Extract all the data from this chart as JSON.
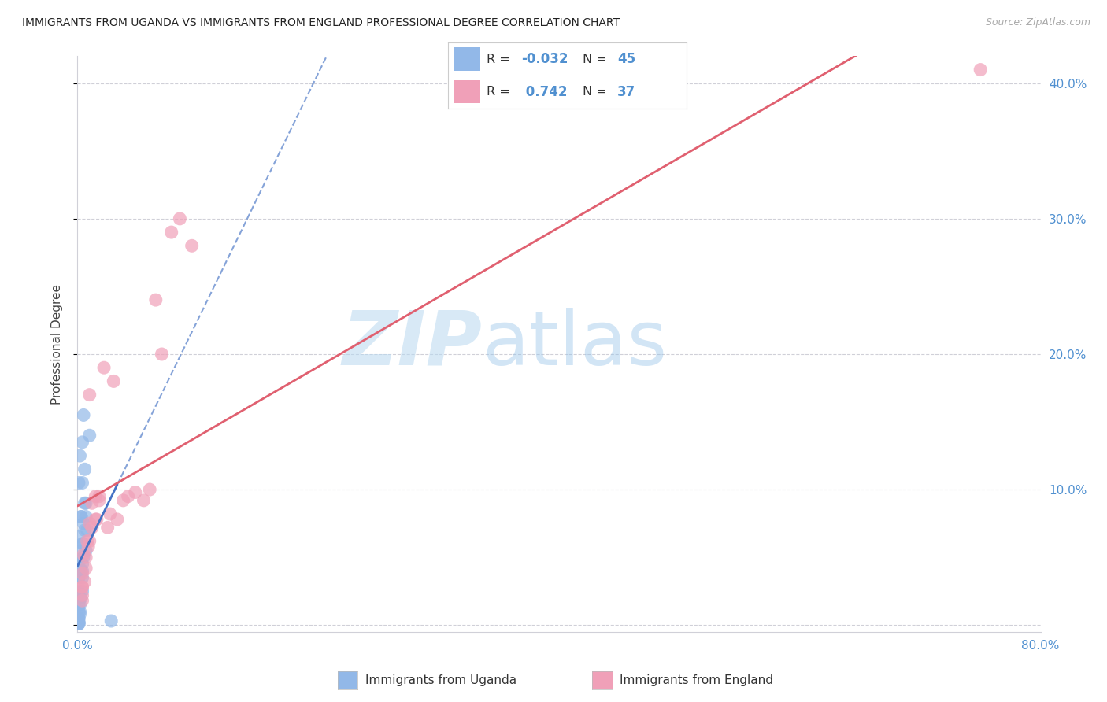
{
  "title": "IMMIGRANTS FROM UGANDA VS IMMIGRANTS FROM ENGLAND PROFESSIONAL DEGREE CORRELATION CHART",
  "source": "Source: ZipAtlas.com",
  "ylabel": "Professional Degree",
  "xlim": [
    0.0,
    0.8
  ],
  "ylim": [
    -0.005,
    0.42
  ],
  "xtick_positions": [
    0.0,
    0.1,
    0.2,
    0.3,
    0.4,
    0.5,
    0.6,
    0.7,
    0.8
  ],
  "xticklabels": [
    "0.0%",
    "",
    "",
    "",
    "",
    "",
    "",
    "",
    "80.0%"
  ],
  "ytick_positions": [
    0.0,
    0.1,
    0.2,
    0.3,
    0.4
  ],
  "yticklabels": [
    "",
    "10.0%",
    "20.0%",
    "30.0%",
    "40.0%"
  ],
  "R_uganda": -0.032,
  "N_uganda": 45,
  "R_england": 0.742,
  "N_england": 37,
  "uganda_color": "#92b8e8",
  "england_color": "#f0a0b8",
  "uganda_line_color": "#4472c4",
  "england_line_color": "#e06070",
  "background_color": "#ffffff",
  "grid_color": "#d0d0d8",
  "tick_color": "#5090d0",
  "legend_label_uganda": "Immigrants from Uganda",
  "legend_label_england": "Immigrants from England",
  "uganda_x": [
    0.002,
    0.004,
    0.005,
    0.001,
    0.007,
    0.006,
    0.003,
    0.001,
    0.008,
    0.004,
    0.001,
    0.002,
    0.01,
    0.001,
    0.004,
    0.003,
    0.005,
    0.001,
    0.003,
    0.006,
    0.001,
    0.004,
    0.001,
    0.003,
    0.007,
    0.001,
    0.002,
    0.005,
    0.001,
    0.004,
    0.001,
    0.002,
    0.006,
    0.001,
    0.004,
    0.001,
    0.002,
    0.005,
    0.001,
    0.007,
    0.001,
    0.002,
    0.001,
    0.004,
    0.028
  ],
  "uganda_y": [
    0.125,
    0.135,
    0.155,
    0.105,
    0.09,
    0.115,
    0.08,
    0.065,
    0.07,
    0.105,
    0.045,
    0.055,
    0.14,
    0.035,
    0.06,
    0.08,
    0.075,
    0.025,
    0.04,
    0.09,
    0.015,
    0.035,
    0.01,
    0.02,
    0.08,
    0.005,
    0.02,
    0.06,
    0.005,
    0.045,
    0.003,
    0.01,
    0.07,
    0.002,
    0.04,
    0.002,
    0.015,
    0.05,
    0.001,
    0.055,
    0.001,
    0.008,
    0.001,
    0.025,
    0.003
  ],
  "england_x": [
    0.007,
    0.01,
    0.015,
    0.004,
    0.022,
    0.008,
    0.03,
    0.018,
    0.005,
    0.012,
    0.042,
    0.025,
    0.01,
    0.055,
    0.015,
    0.07,
    0.038,
    0.006,
    0.095,
    0.018,
    0.004,
    0.012,
    0.06,
    0.048,
    0.009,
    0.027,
    0.004,
    0.01,
    0.065,
    0.016,
    0.078,
    0.033,
    0.004,
    0.007,
    0.085,
    0.75,
    0.004
  ],
  "england_y": [
    0.05,
    0.075,
    0.095,
    0.038,
    0.19,
    0.062,
    0.18,
    0.095,
    0.052,
    0.072,
    0.095,
    0.072,
    0.17,
    0.092,
    0.078,
    0.2,
    0.092,
    0.032,
    0.28,
    0.092,
    0.028,
    0.09,
    0.1,
    0.098,
    0.058,
    0.082,
    0.028,
    0.062,
    0.24,
    0.078,
    0.29,
    0.078,
    0.022,
    0.042,
    0.3,
    0.41,
    0.018
  ]
}
